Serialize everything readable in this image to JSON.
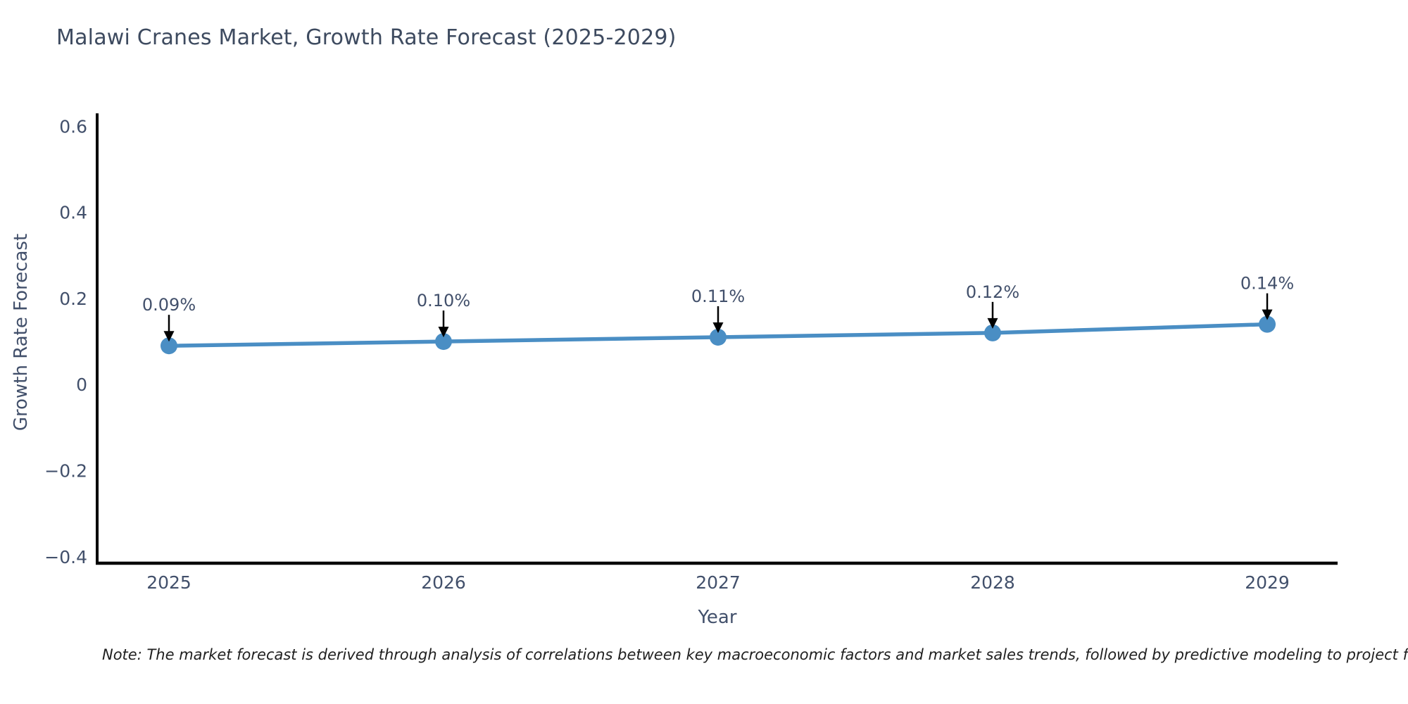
{
  "chart": {
    "title": "Malawi Cranes Market, Growth Rate Forecast (2025-2029)",
    "xlabel": "Year",
    "ylabel": "Growth Rate Forecast"
  },
  "chart_data": {
    "type": "line",
    "title": "Malawi Cranes Market, Growth Rate Forecast (2025-2029)",
    "xlabel": "Year",
    "ylabel": "Growth Rate Forecast",
    "categories": [
      "2025",
      "2026",
      "2027",
      "2028",
      "2029"
    ],
    "series": [
      {
        "name": "Growth Rate Forecast",
        "values": [
          0.09,
          0.1,
          0.11,
          0.12,
          0.14
        ],
        "point_labels": [
          "0.09%",
          "0.10%",
          "0.11%",
          "0.12%",
          "0.14%"
        ]
      }
    ],
    "ylim": [
      -0.415,
      0.63
    ],
    "yticks": [
      {
        "label": "0.6",
        "value": 0.6
      },
      {
        "label": "0.4",
        "value": 0.4
      },
      {
        "label": "0.2",
        "value": 0.2
      },
      {
        "label": "0",
        "value": 0.0
      },
      {
        "label": "−0.2",
        "value": -0.2
      },
      {
        "label": "−0.4",
        "value": -0.4
      }
    ],
    "grid": false,
    "legend_position": "none",
    "annotation_style": "arrow-down",
    "colors": {
      "line": "#4a8ec4",
      "marker": "#4a8ec4",
      "axis": "#000000",
      "arrow": "#000000",
      "tick_text": "#42506b",
      "annotation_text": "#3d4a5f"
    }
  },
  "note": "Note: The market forecast is derived through analysis of correlations between key macroeconomic factors and market sales trends, followed by predictive modeling to project future sa"
}
